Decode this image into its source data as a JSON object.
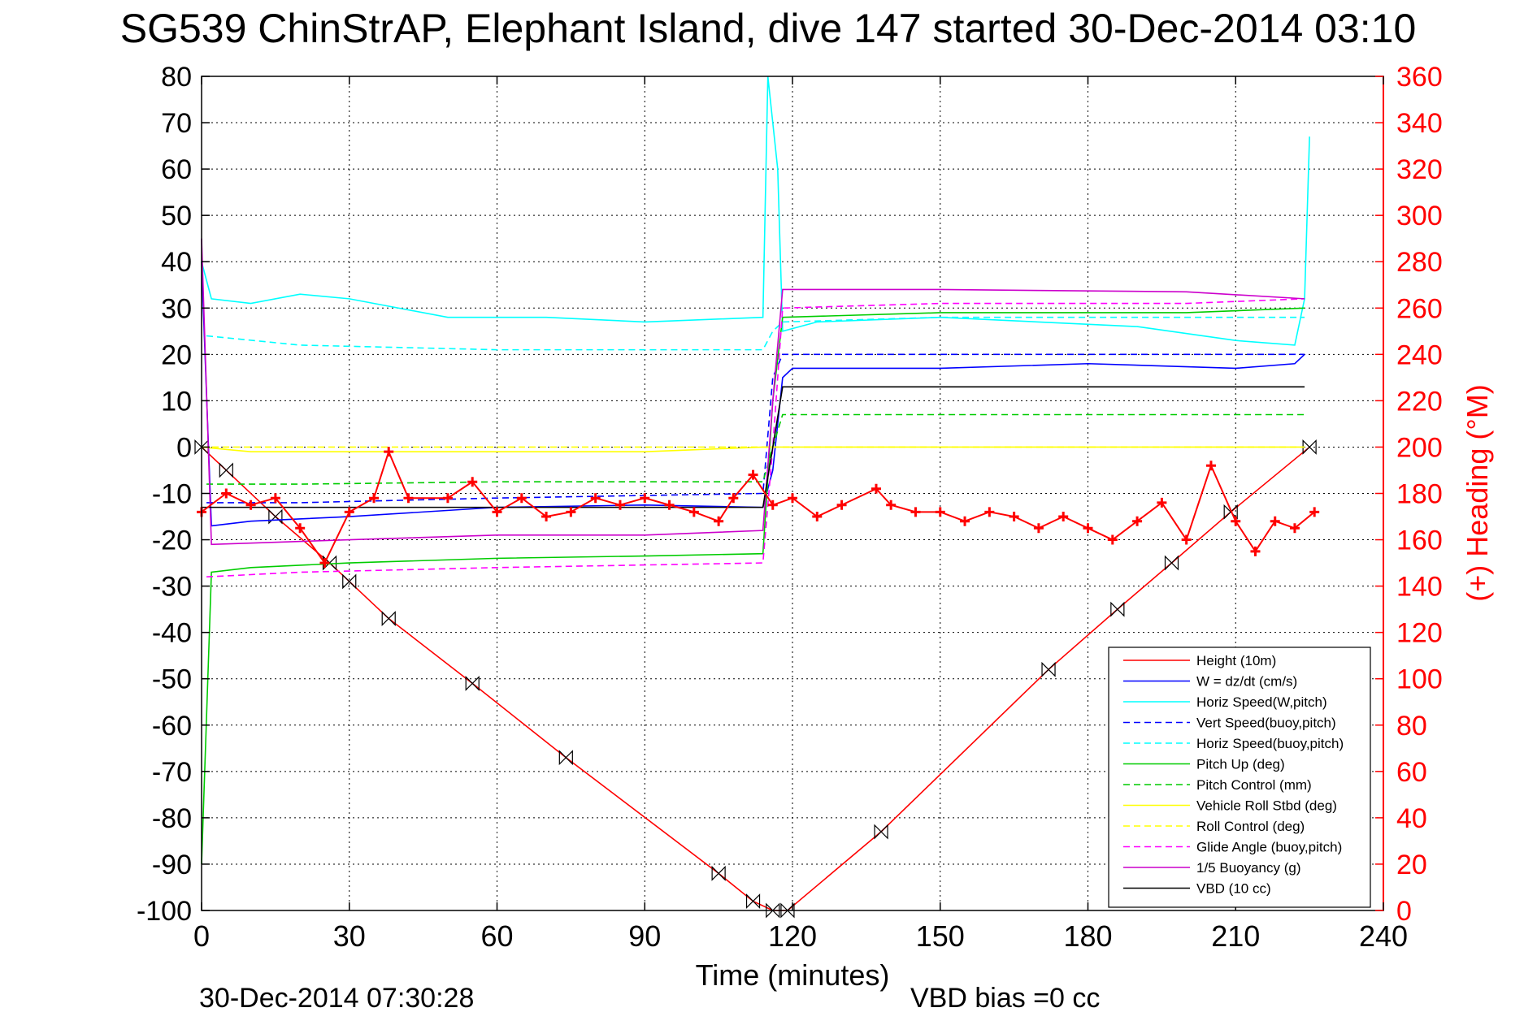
{
  "chart_data": {
    "type": "line",
    "title": "SG539 ChinStrAP, Elephant Island, dive 147 started 30-Dec-2014 03:10",
    "xlabel": "Time (minutes)",
    "ylabel_right": "(+) Heading (°M)",
    "timestamp": "30-Dec-2014 07:30:28",
    "vbd_bias": "VBD bias =0 cc",
    "xlim": [
      0,
      240
    ],
    "ylim": [
      -100,
      80
    ],
    "ylim_right": [
      0,
      360
    ],
    "x_ticks": [
      0,
      30,
      60,
      90,
      120,
      150,
      180,
      210,
      240
    ],
    "y_ticks": [
      80,
      70,
      60,
      50,
      40,
      30,
      20,
      10,
      0,
      -10,
      -20,
      -30,
      -40,
      -50,
      -60,
      -70,
      -80,
      -90,
      -100
    ],
    "y_ticks_right": [
      360,
      340,
      320,
      300,
      280,
      260,
      240,
      220,
      200,
      180,
      160,
      140,
      120,
      100,
      80,
      60,
      40,
      20,
      0
    ],
    "grid": true,
    "legend_position": "bottom-right",
    "series": [
      {
        "name": "Height (10m)",
        "color": "#ff0000",
        "dash": "solid",
        "x": [
          0,
          5,
          15,
          26,
          30,
          38,
          55,
          74,
          105,
          112,
          116,
          119,
          138,
          172,
          186,
          197,
          209,
          225
        ],
        "y": [
          0,
          -5,
          -15,
          -25,
          -29,
          -37,
          -51,
          -67,
          -92,
          -98,
          -100,
          -100,
          -83,
          -48,
          -35,
          -25,
          -14,
          0
        ]
      },
      {
        "name": "W = dz/dt (cm/s)",
        "color": "#0000ff",
        "dash": "solid",
        "x": [
          0,
          2,
          10,
          30,
          60,
          90,
          114,
          116,
          118,
          120,
          150,
          180,
          210,
          222,
          224
        ],
        "y": [
          40,
          -17,
          -16,
          -15,
          -13,
          -12.5,
          -13,
          -5,
          15,
          17,
          17,
          18,
          17,
          18,
          20
        ]
      },
      {
        "name": "Horiz Speed(W,pitch)",
        "color": "#00ffff",
        "dash": "solid",
        "x": [
          0,
          2,
          10,
          20,
          30,
          50,
          70,
          90,
          114,
          115,
          116,
          117,
          118,
          125,
          150,
          170,
          190,
          210,
          222,
          224,
          225
        ],
        "y": [
          40,
          32,
          31,
          33,
          32,
          28,
          28,
          27,
          28,
          80,
          70,
          60,
          25,
          27,
          28,
          27,
          26,
          23,
          22,
          32,
          67
        ]
      },
      {
        "name": "Vert Speed(buoy,pitch)",
        "color": "#0000ff",
        "dash": "dashed",
        "x": [
          1,
          20,
          60,
          114,
          116,
          118,
          150,
          200,
          224
        ],
        "y": [
          -12,
          -12,
          -11,
          -10,
          15,
          20,
          20,
          20,
          20
        ]
      },
      {
        "name": "Horiz Speed(buoy,pitch)",
        "color": "#00ffff",
        "dash": "dashed",
        "x": [
          1,
          20,
          60,
          114,
          116,
          118,
          150,
          200,
          224
        ],
        "y": [
          24,
          22,
          21,
          21,
          25,
          27,
          28,
          28,
          28
        ]
      },
      {
        "name": "Pitch Up (deg)",
        "color": "#00cc00",
        "dash": "solid",
        "x": [
          0,
          2,
          10,
          30,
          60,
          90,
          114,
          116,
          118,
          150,
          200,
          224
        ],
        "y": [
          -90,
          -27,
          -26,
          -25,
          -24,
          -23.5,
          -23,
          10,
          28,
          29,
          29,
          30
        ]
      },
      {
        "name": "Pitch Control (mm)",
        "color": "#00cc00",
        "dash": "dashed",
        "x": [
          1,
          20,
          60,
          114,
          116,
          118,
          150,
          200,
          224
        ],
        "y": [
          -8,
          -8,
          -7.5,
          -7.5,
          0,
          7,
          7,
          7,
          7
        ]
      },
      {
        "name": "Vehicle Roll Stbd (deg)",
        "color": "#ffff00",
        "dash": "solid",
        "x": [
          0,
          10,
          30,
          60,
          90,
          114,
          150,
          180,
          210,
          224
        ],
        "y": [
          0,
          -1,
          -1,
          -1,
          -1,
          0,
          0,
          0,
          0,
          0
        ]
      },
      {
        "name": "Roll Control (deg)",
        "color": "#ffff00",
        "dash": "dashed",
        "x": [
          0,
          20,
          60,
          114,
          150,
          200,
          224
        ],
        "y": [
          0,
          0,
          0,
          0,
          0,
          0,
          0
        ]
      },
      {
        "name": "Glide Angle (buoy,pitch)",
        "color": "#ff00ff",
        "dash": "dashed",
        "x": [
          1,
          20,
          60,
          114,
          116,
          118,
          150,
          200,
          224
        ],
        "y": [
          -28,
          -27,
          -26,
          -25,
          0,
          30,
          31,
          31,
          32
        ]
      },
      {
        "name": "1/5 Buoyancy (g)",
        "color": "#cc00cc",
        "dash": "solid",
        "x": [
          0,
          2,
          30,
          60,
          90,
          114,
          116,
          118,
          150,
          200,
          224
        ],
        "y": [
          45,
          -21,
          -20,
          -19,
          -19,
          -18,
          10,
          34,
          34,
          33.5,
          32
        ]
      },
      {
        "name": "VBD (10 cc)",
        "color": "#000000",
        "dash": "solid",
        "x": [
          0,
          2,
          114,
          116,
          118,
          224
        ],
        "y": [
          -13,
          -13,
          -13,
          0,
          13,
          13
        ]
      },
      {
        "name": "Heading",
        "color": "#ff0000",
        "axis": "right",
        "marker": "+",
        "x": [
          0,
          5,
          10,
          15,
          20,
          25,
          30,
          35,
          38,
          42,
          50,
          55,
          60,
          65,
          70,
          75,
          80,
          85,
          90,
          95,
          100,
          105,
          108,
          112,
          116,
          120,
          125,
          130,
          137,
          140,
          145,
          150,
          155,
          160,
          165,
          170,
          175,
          180,
          185,
          190,
          195,
          200,
          205,
          210,
          214,
          218,
          222,
          226
        ],
        "y": [
          172,
          180,
          175,
          178,
          165,
          150,
          172,
          178,
          198,
          178,
          178,
          185,
          172,
          178,
          170,
          172,
          178,
          175,
          178,
          175,
          172,
          168,
          178,
          188,
          175,
          178,
          170,
          175,
          182,
          175,
          172,
          172,
          168,
          172,
          170,
          165,
          170,
          165,
          160,
          168,
          176,
          160,
          192,
          168,
          155,
          168,
          165,
          172
        ]
      }
    ]
  }
}
